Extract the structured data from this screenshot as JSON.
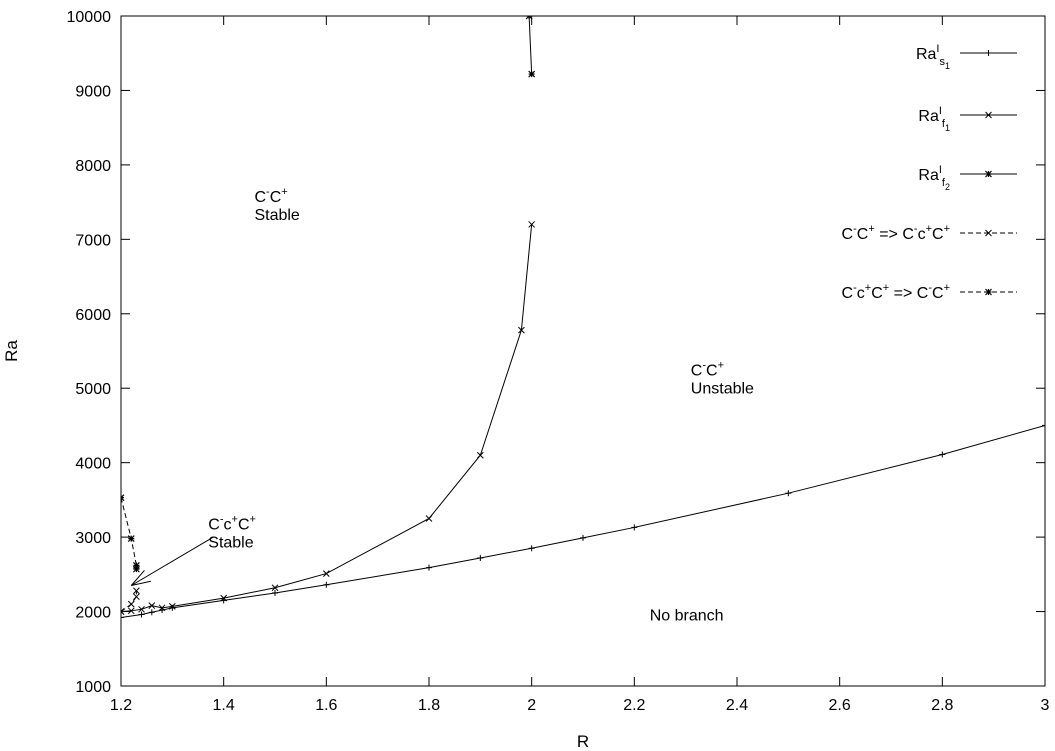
{
  "chart_data": {
    "type": "line",
    "xlabel": "R",
    "ylabel": "Ra",
    "xlim": [
      1.2,
      3.0
    ],
    "ylim": [
      1000,
      10000
    ],
    "x_ticks": [
      "1.2",
      "1.4",
      "1.6",
      "1.8",
      "2",
      "2.2",
      "2.4",
      "2.6",
      "2.8",
      "3"
    ],
    "y_ticks": [
      "1000",
      "2000",
      "3000",
      "4000",
      "5000",
      "6000",
      "7000",
      "8000",
      "9000",
      "10000"
    ],
    "grid": false,
    "legend_position": "top-right",
    "series": [
      {
        "name": "Ra^I_{s_1}",
        "style": "solid",
        "marker": "plus",
        "color": "#000000",
        "x": [
          1.2,
          1.24,
          1.26,
          1.28,
          1.3,
          1.4,
          1.5,
          1.6,
          1.8,
          1.9,
          2.0,
          2.1,
          2.2,
          2.5,
          2.8,
          3.0
        ],
        "y": [
          1920,
          1960,
          1990,
          2020,
          2050,
          2150,
          2250,
          2360,
          2590,
          2720,
          2850,
          2990,
          3130,
          3590,
          4110,
          4500
        ]
      },
      {
        "name": "Ra^I_{f_1}",
        "style": "solid",
        "marker": "x",
        "color": "#000000",
        "x": [
          1.2,
          1.22,
          1.24,
          1.26,
          1.28,
          1.3,
          1.4,
          1.5,
          1.6,
          1.8,
          1.9,
          1.98,
          2.0
        ],
        "y": [
          2000,
          2010,
          2030,
          2080,
          2050,
          2070,
          2180,
          2320,
          2510,
          3250,
          4100,
          5780,
          7200
        ]
      },
      {
        "name": "Ra^I_{f_2}",
        "style": "solid",
        "marker": "asterisk",
        "color": "#000000",
        "x": [
          1.995,
          2.0
        ],
        "y": [
          10000,
          9220
        ]
      },
      {
        "name": "C^-C^+ => C^-c^+C^+",
        "style": "dashed",
        "marker": "x",
        "color": "#000000",
        "x": [
          1.2,
          1.22,
          1.23,
          1.23
        ],
        "y": [
          2000,
          2100,
          2200,
          2280
        ]
      },
      {
        "name": "C^-c^+C^+ => C^-C^+",
        "style": "dashed",
        "marker": "asterisk",
        "color": "#000000",
        "x": [
          1.2,
          1.22,
          1.23,
          1.23
        ],
        "y": [
          3530,
          2980,
          2620,
          2570
        ]
      }
    ],
    "annotations": [
      {
        "id": "stable-upper",
        "x": 1.46,
        "y": 7500,
        "line1": "C^-C^+",
        "line2": "Stable"
      },
      {
        "id": "unstable",
        "x": 2.31,
        "y": 5170,
        "line1": "C^-C^+",
        "line2": "Unstable"
      },
      {
        "id": "stable-lower",
        "x": 1.37,
        "y": 3100,
        "line1": "C^-c^+C^+",
        "line2": "Stable"
      },
      {
        "id": "nobranch",
        "x": 2.23,
        "y": 1880,
        "line1": "No branch"
      }
    ],
    "arrow": {
      "from": [
        1.38,
        3000
      ],
      "to": [
        1.22,
        2350
      ]
    }
  }
}
